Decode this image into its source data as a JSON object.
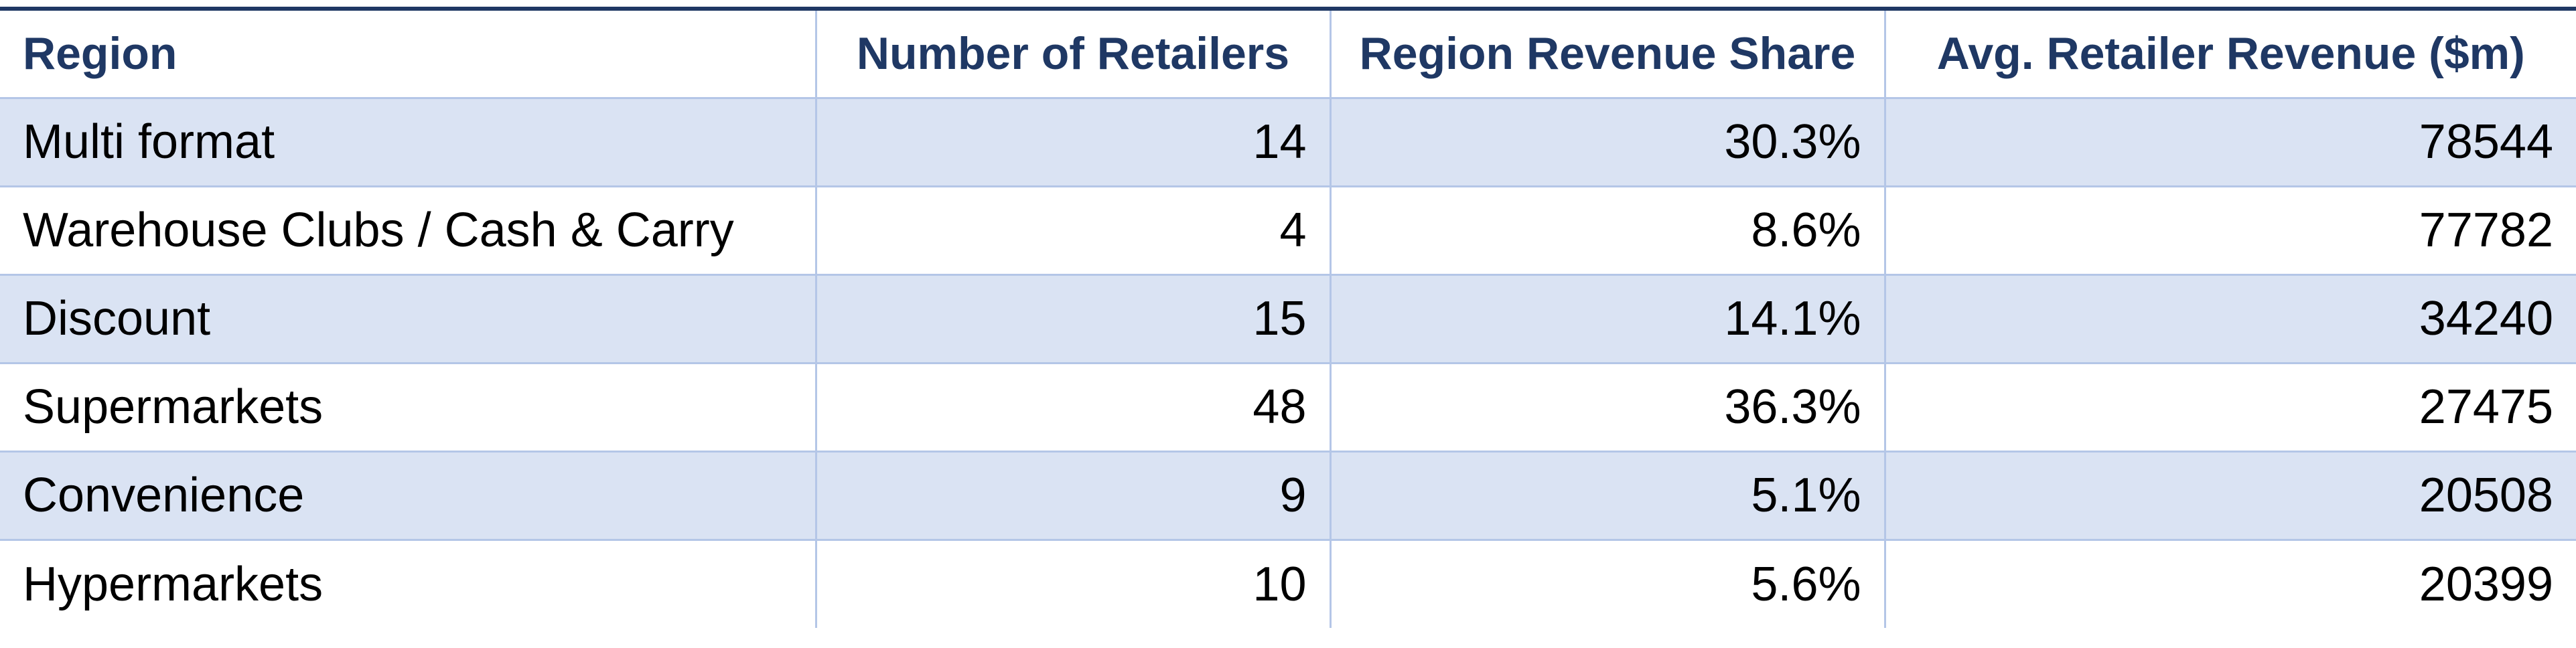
{
  "chart_data": {
    "type": "table",
    "columns": [
      "Region",
      "Number of Retailers",
      "Region Revenue Share",
      "Avg. Retailer Revenue ($m)"
    ],
    "rows": [
      [
        "Multi format",
        "14",
        "30.3%",
        "78544"
      ],
      [
        "Warehouse Clubs / Cash & Carry",
        "4",
        "8.6%",
        "77782"
      ],
      [
        "Discount",
        "15",
        "14.1%",
        "34240"
      ],
      [
        "Supermarkets",
        "48",
        "36.3%",
        "27475"
      ],
      [
        "Convenience",
        "9",
        "5.1%",
        "20508"
      ],
      [
        "Hypermarkets",
        "10",
        "5.6%",
        "20399"
      ]
    ]
  },
  "colors": {
    "header_text": "#1f3864",
    "band_fill": "#dae3f3",
    "grid_line": "#b4c6e7",
    "outer_rule": "#1f3864"
  }
}
